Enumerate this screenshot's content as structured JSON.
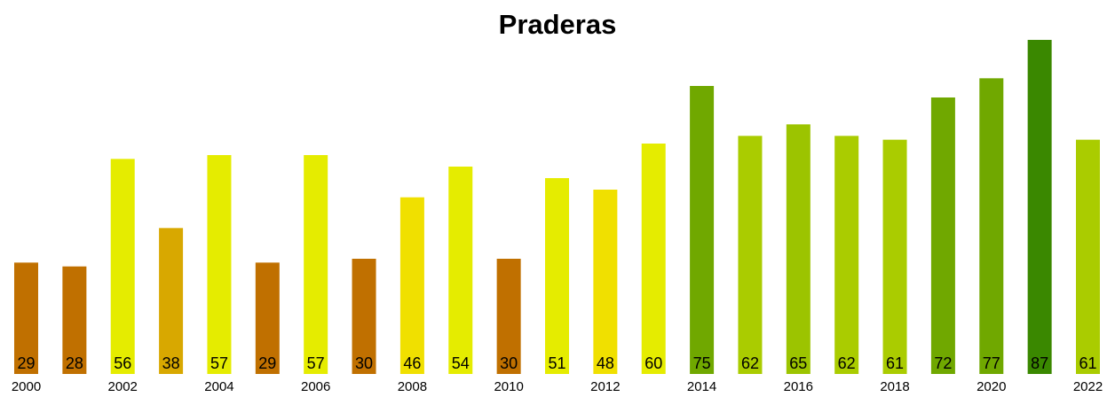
{
  "chart_data": {
    "type": "bar",
    "title": "Praderas",
    "categories": [
      "2000",
      null,
      "2002",
      null,
      "2004",
      null,
      "2006",
      null,
      "2008",
      null,
      "2010",
      null,
      "2012",
      null,
      "2014",
      null,
      "2016",
      null,
      "2018",
      null,
      "2020",
      null,
      "2022"
    ],
    "values": [
      29,
      28,
      56,
      38,
      57,
      29,
      57,
      30,
      46,
      54,
      30,
      51,
      48,
      60,
      75,
      62,
      65,
      62,
      61,
      72,
      77,
      87,
      61
    ],
    "colors": [
      "#c07000",
      "#c07000",
      "#e5ec00",
      "#d8a800",
      "#e5ec00",
      "#c07000",
      "#e5ec00",
      "#c07000",
      "#f0e000",
      "#e5ec00",
      "#c07000",
      "#e5ec00",
      "#f0e000",
      "#e5ec00",
      "#70a800",
      "#aacc00",
      "#9cc400",
      "#aacc00",
      "#aacc00",
      "#70a800",
      "#70a800",
      "#3a8800",
      "#aacc00"
    ]
  }
}
